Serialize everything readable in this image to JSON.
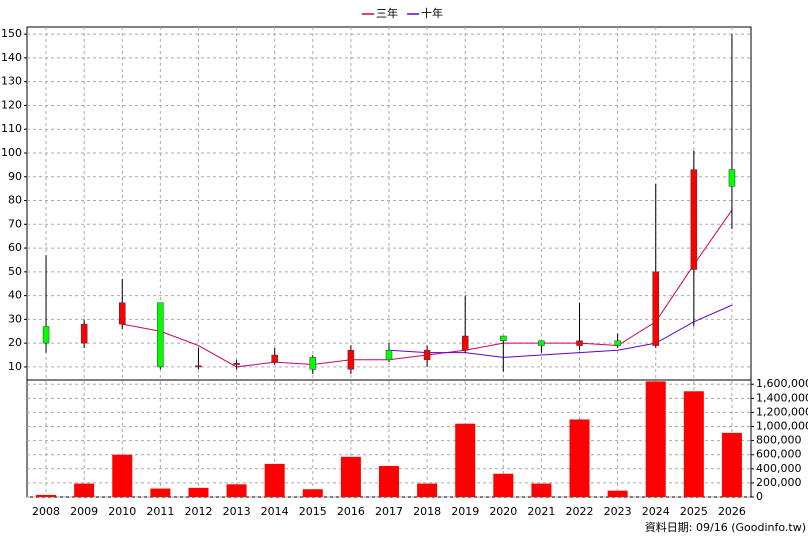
{
  "chart_data": {
    "type": "candlestick",
    "categories": [
      "2008",
      "2009",
      "2010",
      "2011",
      "2012",
      "2013",
      "2014",
      "2015",
      "2016",
      "2017",
      "2018",
      "2019",
      "2020",
      "2021",
      "2022",
      "2023",
      "2024",
      "2025",
      "2026"
    ],
    "open": [
      27,
      20,
      28,
      37,
      10,
      11,
      12,
      14,
      9,
      17,
      13,
      17,
      23,
      21,
      19,
      21,
      19,
      51,
      93
    ],
    "high": [
      57,
      30,
      47,
      37,
      18,
      13,
      18,
      15,
      19,
      20,
      19,
      40,
      23,
      21,
      37,
      24,
      87,
      101,
      150
    ],
    "low": [
      16,
      18,
      26,
      9,
      9,
      9,
      11,
      7,
      7,
      12,
      10,
      16,
      8,
      16,
      17,
      18,
      18,
      27,
      68
    ],
    "close": [
      20,
      28,
      37,
      10,
      10.5,
      11.5,
      15,
      9,
      17,
      13,
      17,
      23,
      21,
      19,
      21,
      19,
      50,
      93,
      86
    ],
    "up_color": "#ff0000",
    "down_color": "#00ff00",
    "series": [
      {
        "name": "三年",
        "color": "#cc0066",
        "values": [
          null,
          null,
          28,
          25,
          19,
          10,
          12,
          11,
          13,
          13,
          15,
          17,
          20,
          20,
          20,
          19,
          29,
          53,
          76
        ]
      },
      {
        "name": "十年",
        "color": "#6600cc",
        "values": [
          null,
          null,
          null,
          null,
          null,
          null,
          null,
          null,
          null,
          17,
          16,
          16,
          14,
          15,
          16,
          17,
          20,
          29,
          36
        ]
      }
    ],
    "volume": {
      "color": "#ff0000",
      "axis": "y2",
      "values": [
        30000,
        190000,
        600000,
        120000,
        130000,
        180000,
        470000,
        110000,
        570000,
        440000,
        190000,
        1040000,
        330000,
        190000,
        1100000,
        90000,
        1640000,
        1500000,
        910000
      ]
    },
    "ylim": [
      4.5,
      153
    ],
    "yticks": [
      10,
      20,
      30,
      40,
      50,
      60,
      70,
      80,
      90,
      100,
      110,
      120,
      130,
      140,
      150
    ],
    "y2lim": [
      0,
      1660000
    ],
    "y2ticks": [
      0,
      {
        "value": 200000,
        "label": "200,000"
      },
      {
        "value": 400000,
        "label": "400,000"
      },
      {
        "value": 600000,
        "label": "600,000"
      },
      {
        "value": 800000,
        "label": "800,000"
      },
      {
        "value": 1000000,
        "label": "1,000,000"
      },
      {
        "value": 1200000,
        "label": "1,200,000"
      },
      {
        "value": 1400000,
        "label": "1,400,000"
      },
      {
        "value": 1600000,
        "label": "1,600,000"
      }
    ],
    "grid": true,
    "footnote": "資料日期: 09/16 (Goodinfo.tw)"
  }
}
